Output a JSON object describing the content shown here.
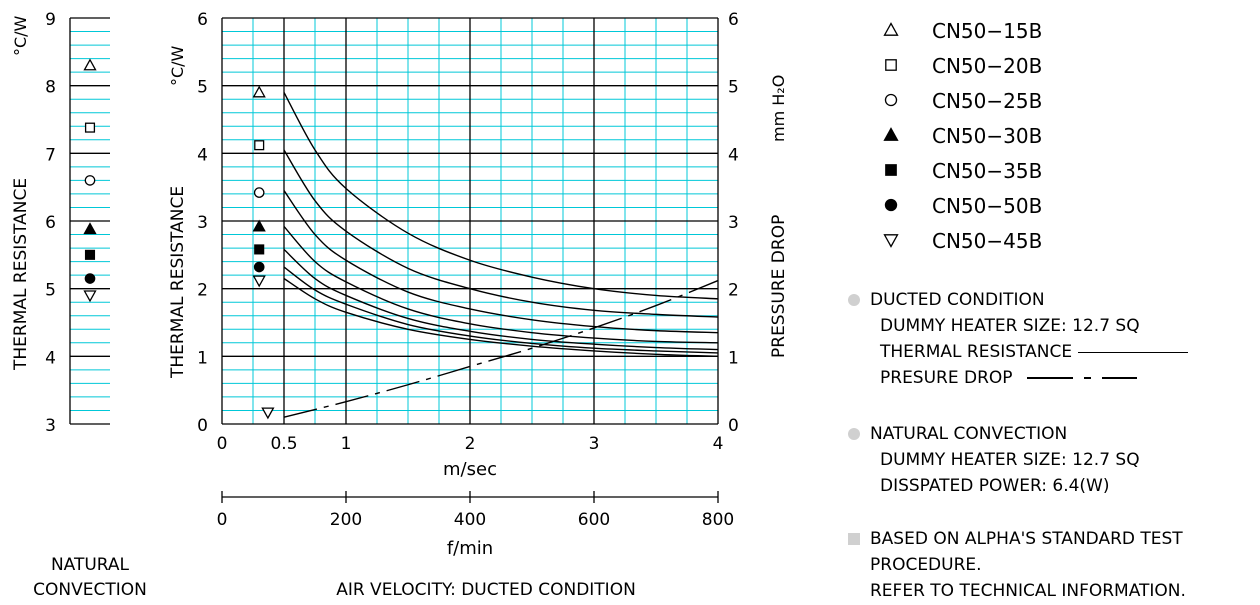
{
  "chart_data": [
    {
      "type": "scatter",
      "name_hint": "natural-convection",
      "caption_lines": [
        "NATURAL",
        "CONVECTION"
      ],
      "ylabel": "THERMAL  RESISTANCE",
      "yunit": "°C/W",
      "ylim": [
        3,
        9
      ],
      "yticks": [
        "3",
        "4",
        "5",
        "6",
        "7",
        "8",
        "9"
      ],
      "points": [
        {
          "marker": "triangle-up-open",
          "y": 8.3
        },
        {
          "marker": "square-open",
          "y": 7.38
        },
        {
          "marker": "circle-open",
          "y": 6.6
        },
        {
          "marker": "triangle-up-filled",
          "y": 5.88
        },
        {
          "marker": "square-filled",
          "y": 5.5
        },
        {
          "marker": "circle-filled",
          "y": 5.15
        },
        {
          "marker": "triangle-down-open",
          "y": 4.9
        }
      ]
    },
    {
      "type": "line",
      "name_hint": "ducted-condition",
      "caption": "AIR VELOCITY:  DUCTED CONDITION",
      "xlabel": "m/sec",
      "xlim": [
        0,
        4
      ],
      "xticks": [
        {
          "v": 0,
          "t": "0"
        },
        {
          "v": 0.5,
          "t": "0.5"
        },
        {
          "v": 1,
          "t": "1"
        },
        {
          "v": 2,
          "t": "2"
        },
        {
          "v": 3,
          "t": "3"
        },
        {
          "v": 4,
          "t": "4"
        }
      ],
      "x2label": "f/min",
      "x2lim": [
        0,
        800
      ],
      "x2ticks": [
        "0",
        "200",
        "400",
        "600",
        "800"
      ],
      "ylabel": "THERMAL  RESISTANCE",
      "yunit": "°C/W",
      "ylim": [
        0,
        6
      ],
      "yticks": [
        "0",
        "1",
        "2",
        "3",
        "4",
        "5",
        "6"
      ],
      "y2label": "PRESSURE  DROP",
      "y2unit": "mm H₂O",
      "y2lim": [
        0,
        6
      ],
      "y2ticks": [
        "0",
        "1",
        "2",
        "3",
        "4",
        "5",
        "6"
      ],
      "grid": true,
      "series": [
        {
          "marker": "triangle-up-open",
          "marker_x": 0.3,
          "marker_y": 4.9,
          "x": [
            0.5,
            0.75,
            1,
            1.5,
            2,
            2.5,
            3,
            3.5,
            4
          ],
          "y": [
            4.9,
            4.05,
            3.48,
            2.82,
            2.42,
            2.17,
            2.0,
            1.9,
            1.85
          ]
        },
        {
          "marker": "square-open",
          "marker_x": 0.3,
          "marker_y": 4.12,
          "x": [
            0.5,
            0.75,
            1,
            1.5,
            2,
            2.5,
            3,
            3.5,
            4
          ],
          "y": [
            4.05,
            3.3,
            2.85,
            2.3,
            2.0,
            1.8,
            1.68,
            1.62,
            1.58
          ]
        },
        {
          "marker": "circle-open",
          "marker_x": 0.3,
          "marker_y": 3.42,
          "x": [
            0.5,
            0.75,
            1,
            1.5,
            2,
            2.5,
            3,
            3.5,
            4
          ],
          "y": [
            3.45,
            2.8,
            2.42,
            1.95,
            1.7,
            1.54,
            1.44,
            1.38,
            1.35
          ]
        },
        {
          "marker": "triangle-up-filled",
          "marker_x": 0.3,
          "marker_y": 2.92,
          "x": [
            0.5,
            0.75,
            1,
            1.5,
            2,
            2.5,
            3,
            3.5,
            4
          ],
          "y": [
            2.92,
            2.4,
            2.1,
            1.7,
            1.48,
            1.35,
            1.27,
            1.22,
            1.2
          ]
        },
        {
          "marker": "square-filled",
          "marker_x": 0.3,
          "marker_y": 2.58,
          "x": [
            0.5,
            0.75,
            1,
            1.5,
            2,
            2.5,
            3,
            3.5,
            4
          ],
          "y": [
            2.58,
            2.15,
            1.9,
            1.56,
            1.37,
            1.25,
            1.18,
            1.13,
            1.1
          ]
        },
        {
          "marker": "circle-filled",
          "marker_x": 0.3,
          "marker_y": 2.32,
          "x": [
            0.5,
            0.75,
            1,
            1.5,
            2,
            2.5,
            3,
            3.5,
            4
          ],
          "y": [
            2.32,
            1.98,
            1.77,
            1.47,
            1.3,
            1.19,
            1.12,
            1.08,
            1.05
          ]
        },
        {
          "marker": "triangle-down-open",
          "marker_x": 0.3,
          "marker_y": 2.12,
          "x": [
            0.5,
            0.75,
            1,
            1.5,
            2,
            2.5,
            3,
            3.5,
            4
          ],
          "y": [
            2.15,
            1.85,
            1.65,
            1.4,
            1.25,
            1.15,
            1.08,
            1.03,
            1.0
          ]
        }
      ],
      "pressure_drop": {
        "marker": "triangle-down-open",
        "marker_x": 0.37,
        "marker_y": 0.17,
        "x": [
          0.5,
          1,
          1.5,
          2,
          2.5,
          3,
          3.5,
          4
        ],
        "y": [
          0.1,
          0.33,
          0.58,
          0.85,
          1.12,
          1.42,
          1.75,
          2.12
        ]
      }
    }
  ],
  "legend": [
    {
      "marker": "triangle-up-open",
      "label": "CN50−15B"
    },
    {
      "marker": "square-open",
      "label": "CN50−20B"
    },
    {
      "marker": "circle-open",
      "label": "CN50−25B"
    },
    {
      "marker": "triangle-up-filled",
      "label": "CN50−30B"
    },
    {
      "marker": "square-filled",
      "label": "CN50−35B"
    },
    {
      "marker": "circle-filled",
      "label": "CN50−50B"
    },
    {
      "marker": "triangle-down-open",
      "label": "CN50−45B"
    }
  ],
  "notes": {
    "ducted": {
      "header": "DUCTED CONDITION",
      "heater": "DUMMY HEATER SIZE: 12.7 SQ",
      "thermal": "THERMAL RESISTANCE",
      "pressure": "PRESURE DROP"
    },
    "natural": {
      "header": "NATURAL CONVECTION",
      "heater": "DUMMY HEATER SIZE: 12.7 SQ",
      "power": "DISSPATED POWER: 6.4(W)"
    },
    "based": {
      "line1": "BASED ON ALPHA'S STANDARD TEST",
      "line2": "PROCEDURE.",
      "line3": "REFER TO TECHNICAL INFORMATION."
    }
  }
}
